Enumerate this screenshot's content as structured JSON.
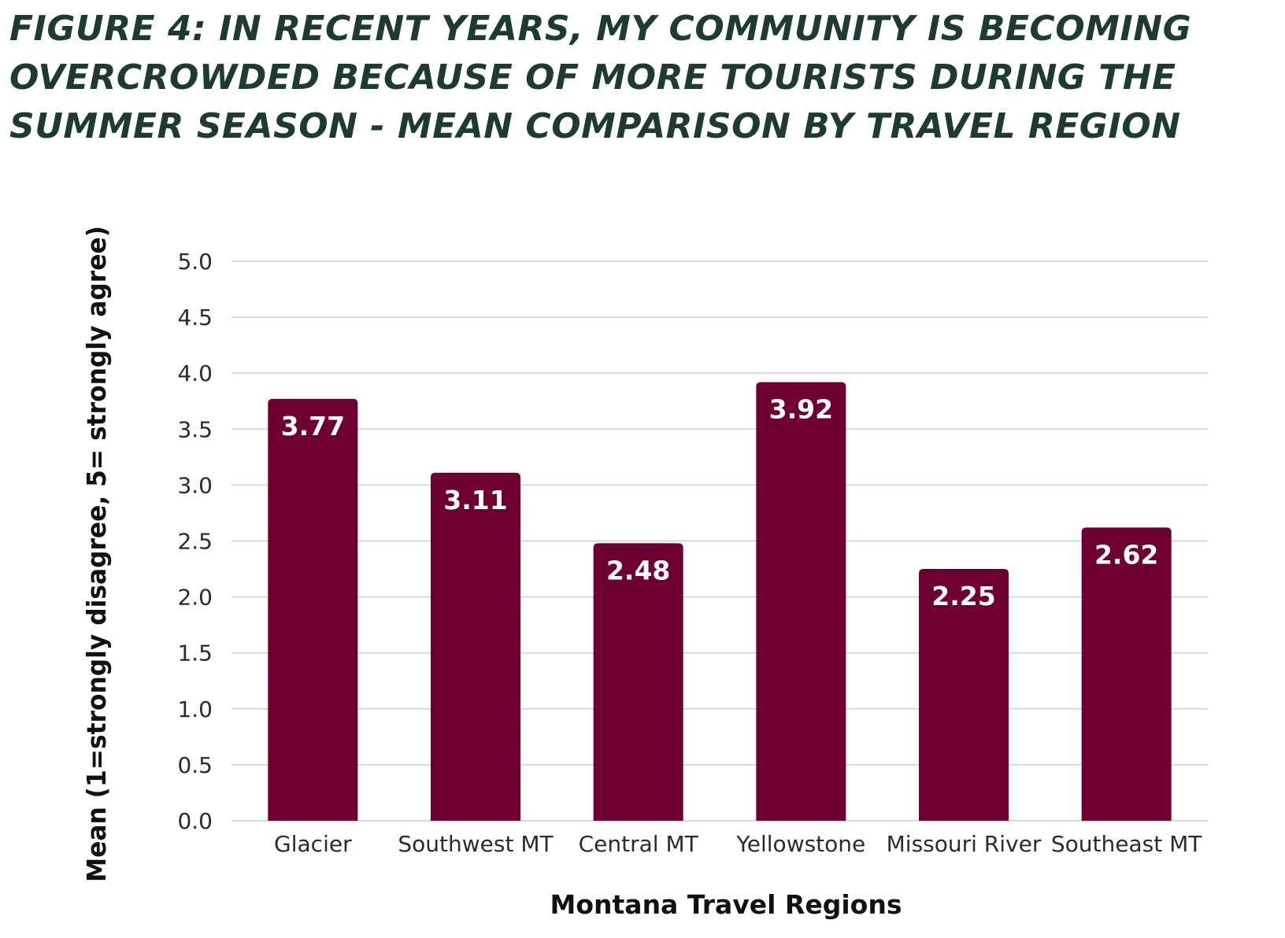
{
  "title": "FIGURE 4: IN RECENT YEARS, MY COMMUNITY IS BECOMING OVERCROWDED BECAUSE OF MORE TOURISTS DURING THE SUMMER SEASON - MEAN COMPARISON BY TRAVEL REGION",
  "colors": {
    "title": "#1d3a33",
    "bar": "#6d0030",
    "grid": "#d9d9d9",
    "data_label": "#ffffff"
  },
  "chart_data": {
    "type": "bar",
    "title": "FIGURE 4: IN RECENT YEARS, MY COMMUNITY IS BECOMING OVERCROWDED BECAUSE OF MORE TOURISTS DURING THE SUMMER SEASON - MEAN COMPARISON BY TRAVEL REGION",
    "xlabel": "Montana Travel Regions",
    "ylabel": "Mean (1=strongly disagree, 5= strongly agree)",
    "categories": [
      "Glacier",
      "Southwest MT",
      "Central MT",
      "Yellowstone",
      "Missouri River",
      "Southeast MT"
    ],
    "values": [
      3.77,
      3.11,
      2.48,
      3.92,
      2.25,
      2.62
    ],
    "data_labels": [
      "3.77",
      "3.11",
      "2.48",
      "3.92",
      "2.25",
      "2.62"
    ],
    "ylim": [
      0,
      5
    ],
    "yticks": [
      "0.0",
      "0.5",
      "1.0",
      "1.5",
      "2.0",
      "2.5",
      "3.0",
      "3.5",
      "4.0",
      "4.5",
      "5.0"
    ],
    "grid": true,
    "legend": "none"
  }
}
